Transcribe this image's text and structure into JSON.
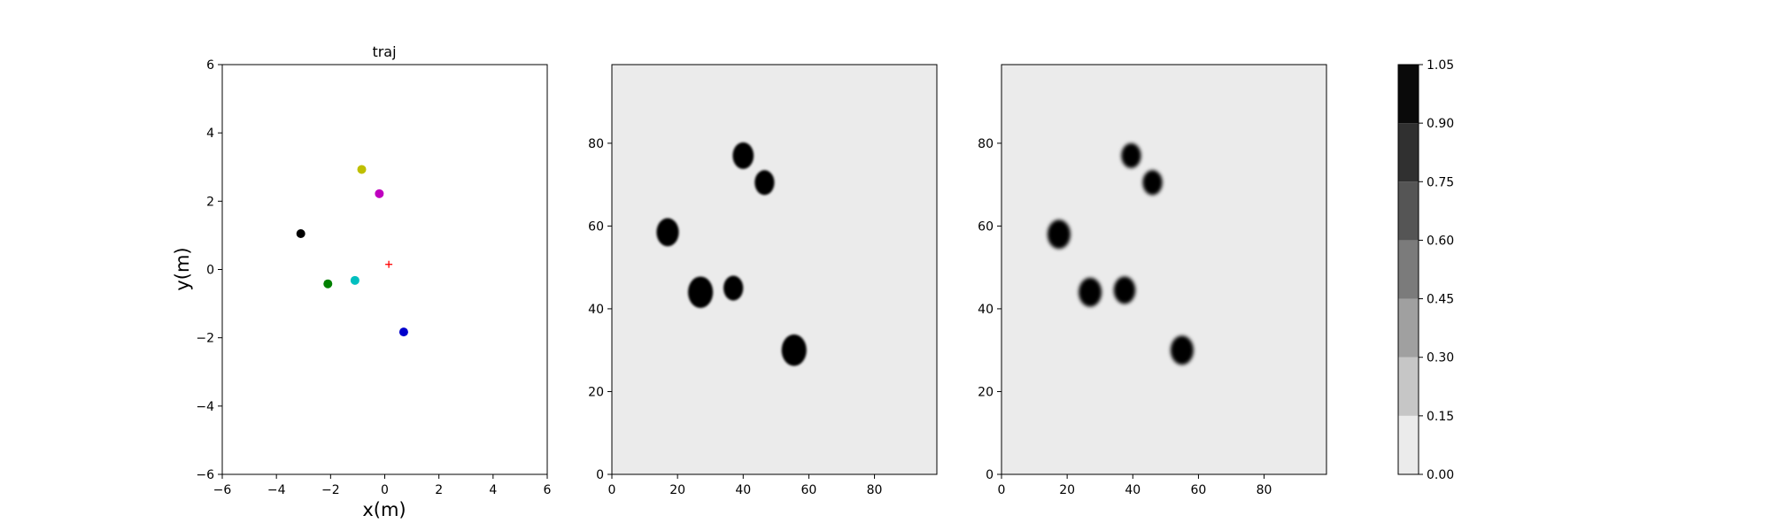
{
  "chart_data": [
    {
      "type": "scatter",
      "title": "traj",
      "xlabel": "x(m)",
      "ylabel": "y(m)",
      "xlim": [
        -6,
        6
      ],
      "ylim": [
        -6,
        6
      ],
      "xticks": [
        "−6",
        "−4",
        "−2",
        "0",
        "2",
        "4",
        "6"
      ],
      "yticks": [
        "−6",
        "−4",
        "−2",
        "0",
        "2",
        "4",
        "6"
      ],
      "grid": false,
      "points": [
        {
          "x": -3.1,
          "y": 1.05,
          "color": "#000000",
          "marker": "circle"
        },
        {
          "x": -2.1,
          "y": -0.42,
          "color": "#008000",
          "marker": "circle"
        },
        {
          "x": -1.1,
          "y": -0.32,
          "color": "#00bfbf",
          "marker": "circle"
        },
        {
          "x": -0.85,
          "y": 2.93,
          "color": "#bfbf00",
          "marker": "circle"
        },
        {
          "x": -0.2,
          "y": 2.22,
          "color": "#bf00bf",
          "marker": "circle"
        },
        {
          "x": 0.7,
          "y": -1.83,
          "color": "#0000cc",
          "marker": "circle"
        },
        {
          "x": 0.15,
          "y": 0.15,
          "color": "#ff0000",
          "marker": "plus"
        }
      ]
    },
    {
      "type": "heatmap",
      "xlim": [
        0,
        99
      ],
      "ylim": [
        0,
        99
      ],
      "xticks": [
        "0",
        "20",
        "40",
        "60",
        "80"
      ],
      "yticks": [
        "0",
        "20",
        "40",
        "60",
        "80"
      ],
      "background": 0.0,
      "blobs": [
        {
          "x": 40,
          "y": 77,
          "r": 3.2,
          "value": 1.0
        },
        {
          "x": 46.5,
          "y": 70.5,
          "r": 3.0,
          "value": 1.0
        },
        {
          "x": 17,
          "y": 58.5,
          "r": 3.4,
          "value": 1.0
        },
        {
          "x": 27,
          "y": 44,
          "r": 3.8,
          "value": 1.0
        },
        {
          "x": 37,
          "y": 45,
          "r": 3.0,
          "value": 1.0
        },
        {
          "x": 55.5,
          "y": 30,
          "r": 3.8,
          "value": 1.0
        }
      ]
    },
    {
      "type": "heatmap",
      "xlim": [
        0,
        99
      ],
      "ylim": [
        0,
        99
      ],
      "xticks": [
        "0",
        "20",
        "40",
        "60",
        "80"
      ],
      "yticks": [
        "0",
        "20",
        "40",
        "60",
        "80"
      ],
      "background": 0.0,
      "blobs": [
        {
          "x": 39.5,
          "y": 77,
          "r": 3.0,
          "value": 1.0
        },
        {
          "x": 46,
          "y": 70.5,
          "r": 3.0,
          "value": 1.0
        },
        {
          "x": 17.5,
          "y": 58,
          "r": 3.5,
          "value": 1.0
        },
        {
          "x": 27,
          "y": 44,
          "r": 3.5,
          "value": 1.0
        },
        {
          "x": 37.5,
          "y": 44.5,
          "r": 3.3,
          "value": 1.0
        },
        {
          "x": 55,
          "y": 30,
          "r": 3.5,
          "value": 1.0
        }
      ]
    }
  ],
  "colorbar": {
    "levels": [
      0.0,
      0.15,
      0.3,
      0.45,
      0.6,
      0.75,
      0.9,
      1.05
    ],
    "tick_labels": [
      "0.00",
      "0.15",
      "0.30",
      "0.45",
      "0.60",
      "0.75",
      "0.90",
      "1.05"
    ],
    "band_colors": [
      "#ebebeb",
      "#c6c6c6",
      "#a0a0a0",
      "#7b7b7b",
      "#555555",
      "#303030",
      "#0a0a0a"
    ]
  }
}
